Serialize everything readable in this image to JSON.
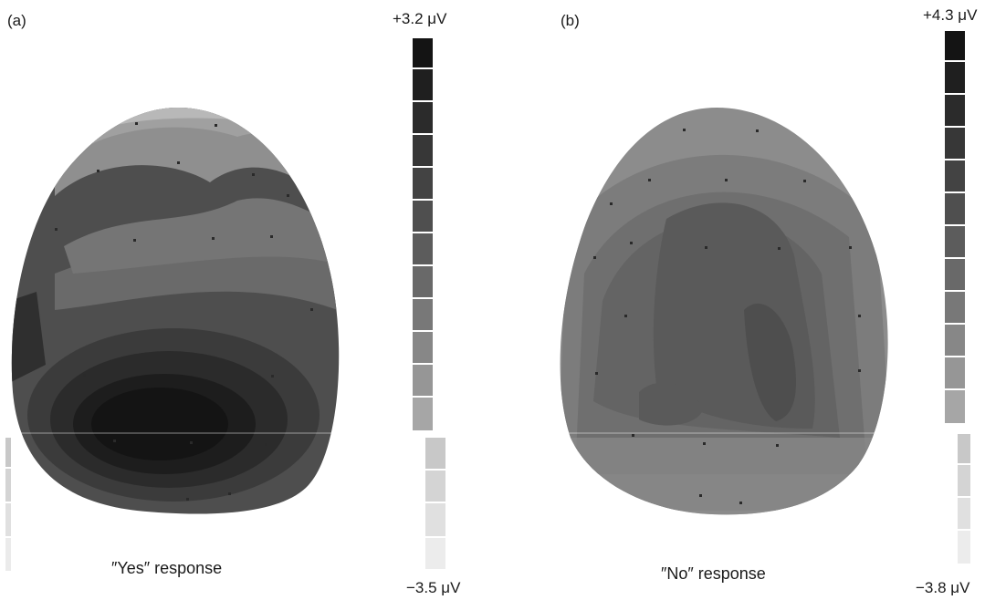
{
  "figure": {
    "panels": [
      {
        "label": "(a)",
        "caption": "″Yes″ response",
        "scale_max": "+3.2 μV",
        "scale_min": "−3.5 μV",
        "scale_colors": [
          "#141414",
          "#1f1f1f",
          "#2b2b2b",
          "#373737",
          "#434343",
          "#4f4f4f",
          "#5c5c5c",
          "#696969",
          "#787878",
          "#878787",
          "#969696",
          "#a6a6a6",
          "#b7b7b7",
          "#c8c8c8",
          "#d9d9d9",
          "#e9e9e9",
          "#f5f5f5"
        ]
      },
      {
        "label": "(b)",
        "caption": "″No″ response",
        "scale_max": "+4.3 μV",
        "scale_min": "−3.8 μV",
        "scale_colors": [
          "#141414",
          "#1f1f1f",
          "#2b2b2b",
          "#373737",
          "#434343",
          "#4f4f4f",
          "#5c5c5c",
          "#696969",
          "#787878",
          "#878787",
          "#969696",
          "#a6a6a6",
          "#b7b7b7",
          "#c8c8c8",
          "#d9d9d9",
          "#e9e9e9",
          "#f5f5f5"
        ]
      }
    ]
  }
}
